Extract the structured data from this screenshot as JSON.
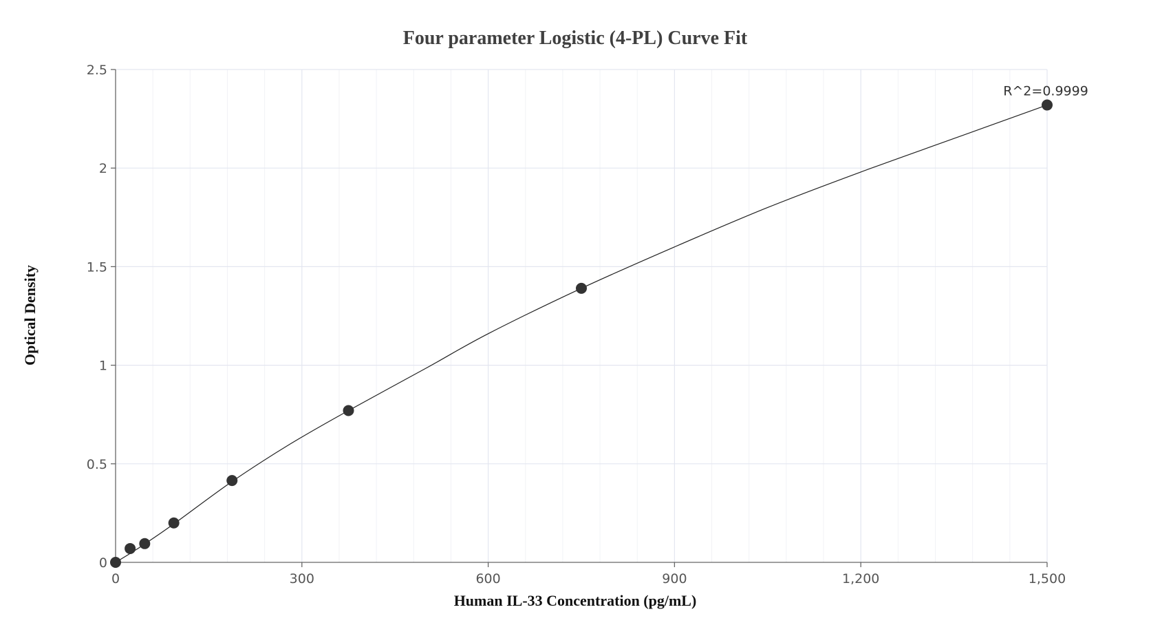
{
  "chart_data": {
    "type": "scatter",
    "title": "Four parameter Logistic (4-PL) Curve Fit",
    "xlabel": "Human IL-33 Concentration (pg/mL)",
    "ylabel": "Optical Density",
    "xlim": [
      0,
      1500
    ],
    "ylim": [
      0,
      2.5
    ],
    "x_ticks": [
      0,
      300,
      600,
      900,
      1200,
      1500
    ],
    "x_tick_labels": [
      "0",
      "300",
      "600",
      "900",
      "1,200",
      "1,500"
    ],
    "x_minor_step": 60,
    "y_ticks": [
      0,
      0.5,
      1,
      1.5,
      2,
      2.5
    ],
    "y_tick_labels": [
      "0",
      "0.5",
      "1",
      "1.5",
      "2",
      "2.5"
    ],
    "grid": true,
    "series": [
      {
        "x": [
          0,
          23.4,
          46.9,
          93.8,
          187.5,
          375,
          750,
          1500
        ],
        "y": [
          0,
          0.07,
          0.095,
          0.2,
          0.415,
          0.77,
          1.39,
          2.32
        ]
      }
    ],
    "fit_curve": {
      "x": [
        0,
        23.4,
        46.9,
        93.8,
        187.5,
        281,
        375,
        500,
        600,
        750,
        900,
        1050,
        1200,
        1350,
        1500
      ],
      "y": [
        0,
        0.045,
        0.093,
        0.195,
        0.41,
        0.6,
        0.77,
        0.985,
        1.16,
        1.39,
        1.6,
        1.8,
        1.98,
        2.15,
        2.32
      ]
    },
    "colors": {
      "point": "#333333",
      "curve": "#222222",
      "grid_major": "#e3e6f0",
      "grid_minor": "#f1f2f6",
      "axis": "#666666"
    },
    "annotation": {
      "text": "R^2=0.9999",
      "x": 1500,
      "y": 2.32
    }
  }
}
